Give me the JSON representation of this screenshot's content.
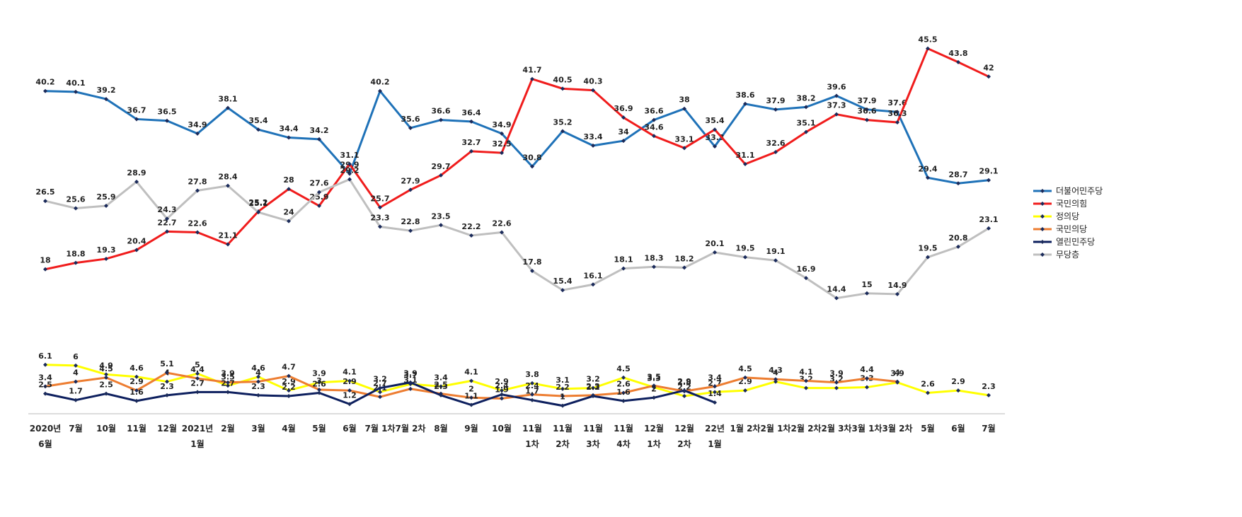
{
  "chart_data": {
    "type": "line",
    "categories": [
      "2020년\n6월",
      "7월",
      "10월",
      "11월",
      "12월",
      "2021년\n1월",
      "2월",
      "3월",
      "4월",
      "5월",
      "6월",
      "7월 1차",
      "7월 2차",
      "8월",
      "9월",
      "10월",
      "11월\n1차",
      "11월\n2차",
      "11월\n3차",
      "11월\n4차",
      "12월\n1차",
      "12월\n2차",
      "22년\n1월",
      "1월 2차",
      "2월 1차",
      "2월 2차",
      "2월 3차",
      "3월 1차",
      "3월 2차",
      "5월",
      "6월",
      "7월"
    ],
    "series": [
      {
        "name": "더불어민주당",
        "color": "#1f72b8",
        "values": [
          40.2,
          40.1,
          39.2,
          36.7,
          36.5,
          34.9,
          38.1,
          35.4,
          34.4,
          34.2,
          29.9,
          40.2,
          35.6,
          36.6,
          36.4,
          34.9,
          30.8,
          35.2,
          33.4,
          34.0,
          36.6,
          38.0,
          33.3,
          38.6,
          37.9,
          38.2,
          39.6,
          37.9,
          37.6,
          29.4,
          28.7,
          29.1
        ]
      },
      {
        "name": "국민의힘",
        "color": "#f01c1c",
        "values": [
          18.0,
          18.8,
          19.3,
          20.4,
          22.7,
          22.6,
          21.1,
          25.2,
          28.0,
          25.9,
          31.1,
          25.7,
          27.9,
          29.7,
          32.7,
          32.5,
          41.7,
          40.5,
          40.3,
          36.9,
          34.6,
          33.1,
          35.4,
          31.1,
          32.6,
          35.1,
          37.3,
          36.6,
          36.3,
          45.5,
          43.8,
          42.0
        ]
      },
      {
        "name": "정의당",
        "color": "#ffff00",
        "values": [
          6.1,
          6.0,
          4.9,
          4.6,
          4.0,
          5.0,
          3.5,
          4.6,
          2.9,
          3.9,
          4.1,
          2.7,
          3.7,
          3.4,
          4.1,
          2.9,
          3.8,
          3.1,
          3.2,
          4.5,
          3.3,
          2.2,
          2.7,
          2.9,
          4.0,
          3.2,
          3.2,
          3.3,
          3.9,
          2.6,
          2.9,
          2.3
        ]
      },
      {
        "name": "국민의당",
        "color": "#ed7d31",
        "values": [
          3.4,
          4.0,
          4.5,
          2.9,
          5.1,
          4.4,
          3.9,
          4.0,
          4.7,
          3.0,
          2.9,
          2.1,
          3.1,
          2.5,
          2.0,
          1.9,
          2.4,
          2.2,
          2.3,
          2.6,
          3.5,
          2.8,
          3.4,
          4.5,
          4.3,
          4.1,
          3.9,
          4.4,
          4.0,
          null,
          null,
          null
        ]
      },
      {
        "name": "열린민주당",
        "color": "#0d1f5e",
        "values": [
          2.5,
          1.7,
          2.5,
          1.6,
          2.3,
          2.7,
          2.7,
          2.3,
          2.2,
          2.6,
          1.2,
          3.2,
          3.9,
          2.3,
          1.1,
          2.4,
          1.7,
          1.0,
          2.2,
          1.6,
          2.0,
          2.9,
          1.4,
          null,
          null,
          null,
          null,
          null,
          null,
          null,
          null,
          null
        ]
      },
      {
        "name": "무당층",
        "color": "#bfbfbf",
        "values": [
          26.5,
          25.6,
          25.9,
          28.9,
          24.3,
          27.8,
          28.4,
          25.1,
          24.0,
          27.6,
          29.2,
          23.3,
          22.8,
          23.5,
          22.2,
          22.6,
          17.8,
          15.4,
          16.1,
          18.1,
          18.3,
          18.2,
          20.1,
          19.5,
          19.1,
          16.9,
          14.4,
          15.0,
          14.9,
          19.5,
          20.8,
          23.1
        ]
      }
    ],
    "ylim": [
      0,
      50
    ],
    "legend": "right"
  }
}
